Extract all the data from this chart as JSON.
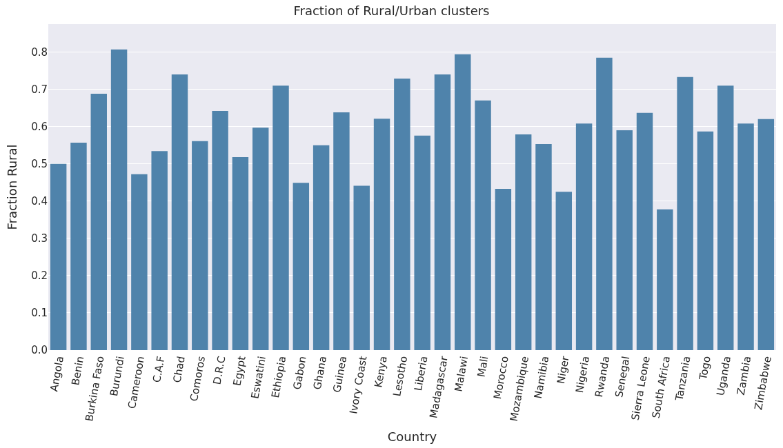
{
  "chart_data": {
    "type": "bar",
    "title": "Fraction of Rural/Urban clusters",
    "xlabel": "Country",
    "ylabel": "Fraction Rural",
    "categories": [
      "Angola",
      "Benin",
      "Burkina Faso",
      "Burundi",
      "Cameroon",
      "C.A.F",
      "Chad",
      "Comoros",
      "D.R.C",
      "Egypt",
      "Eswatini",
      "Ethiopia",
      "Gabon",
      "Ghana",
      "Guinea",
      "Ivory Coast",
      "Kenya",
      "Lesotho",
      "Liberia",
      "Madagascar",
      "Malawi",
      "Mali",
      "Morocco",
      "Mozambique",
      "Namibia",
      "Niger",
      "Nigeria",
      "Rwanda",
      "Senegal",
      "Sierra Leone",
      "South Africa",
      "Tanzania",
      "Togo",
      "Uganda",
      "Zambia",
      "Zimbabwe"
    ],
    "values": [
      0.5,
      0.557,
      0.688,
      0.807,
      0.472,
      0.534,
      0.74,
      0.561,
      0.642,
      0.518,
      0.597,
      0.71,
      0.449,
      0.55,
      0.638,
      0.441,
      0.621,
      0.729,
      0.576,
      0.74,
      0.794,
      0.67,
      0.433,
      0.579,
      0.553,
      0.425,
      0.608,
      0.785,
      0.59,
      0.637,
      0.378,
      0.733,
      0.587,
      0.71,
      0.608,
      0.62
    ],
    "color": "#4f83ab",
    "ylim": [
      0,
      0.875
    ],
    "yticks": [
      {
        "value": 0,
        "label": "0.0"
      },
      {
        "value": 0.1,
        "label": "0.1"
      },
      {
        "value": 0.2,
        "label": "0.2"
      },
      {
        "value": 0.3,
        "label": "0.3"
      },
      {
        "value": 0.4,
        "label": "0.4"
      },
      {
        "value": 0.5,
        "label": "0.5"
      },
      {
        "value": 0.6,
        "label": "0.6"
      },
      {
        "value": 0.7,
        "label": "0.7"
      },
      {
        "value": 0.8,
        "label": "0.8"
      }
    ],
    "grid": "y"
  }
}
